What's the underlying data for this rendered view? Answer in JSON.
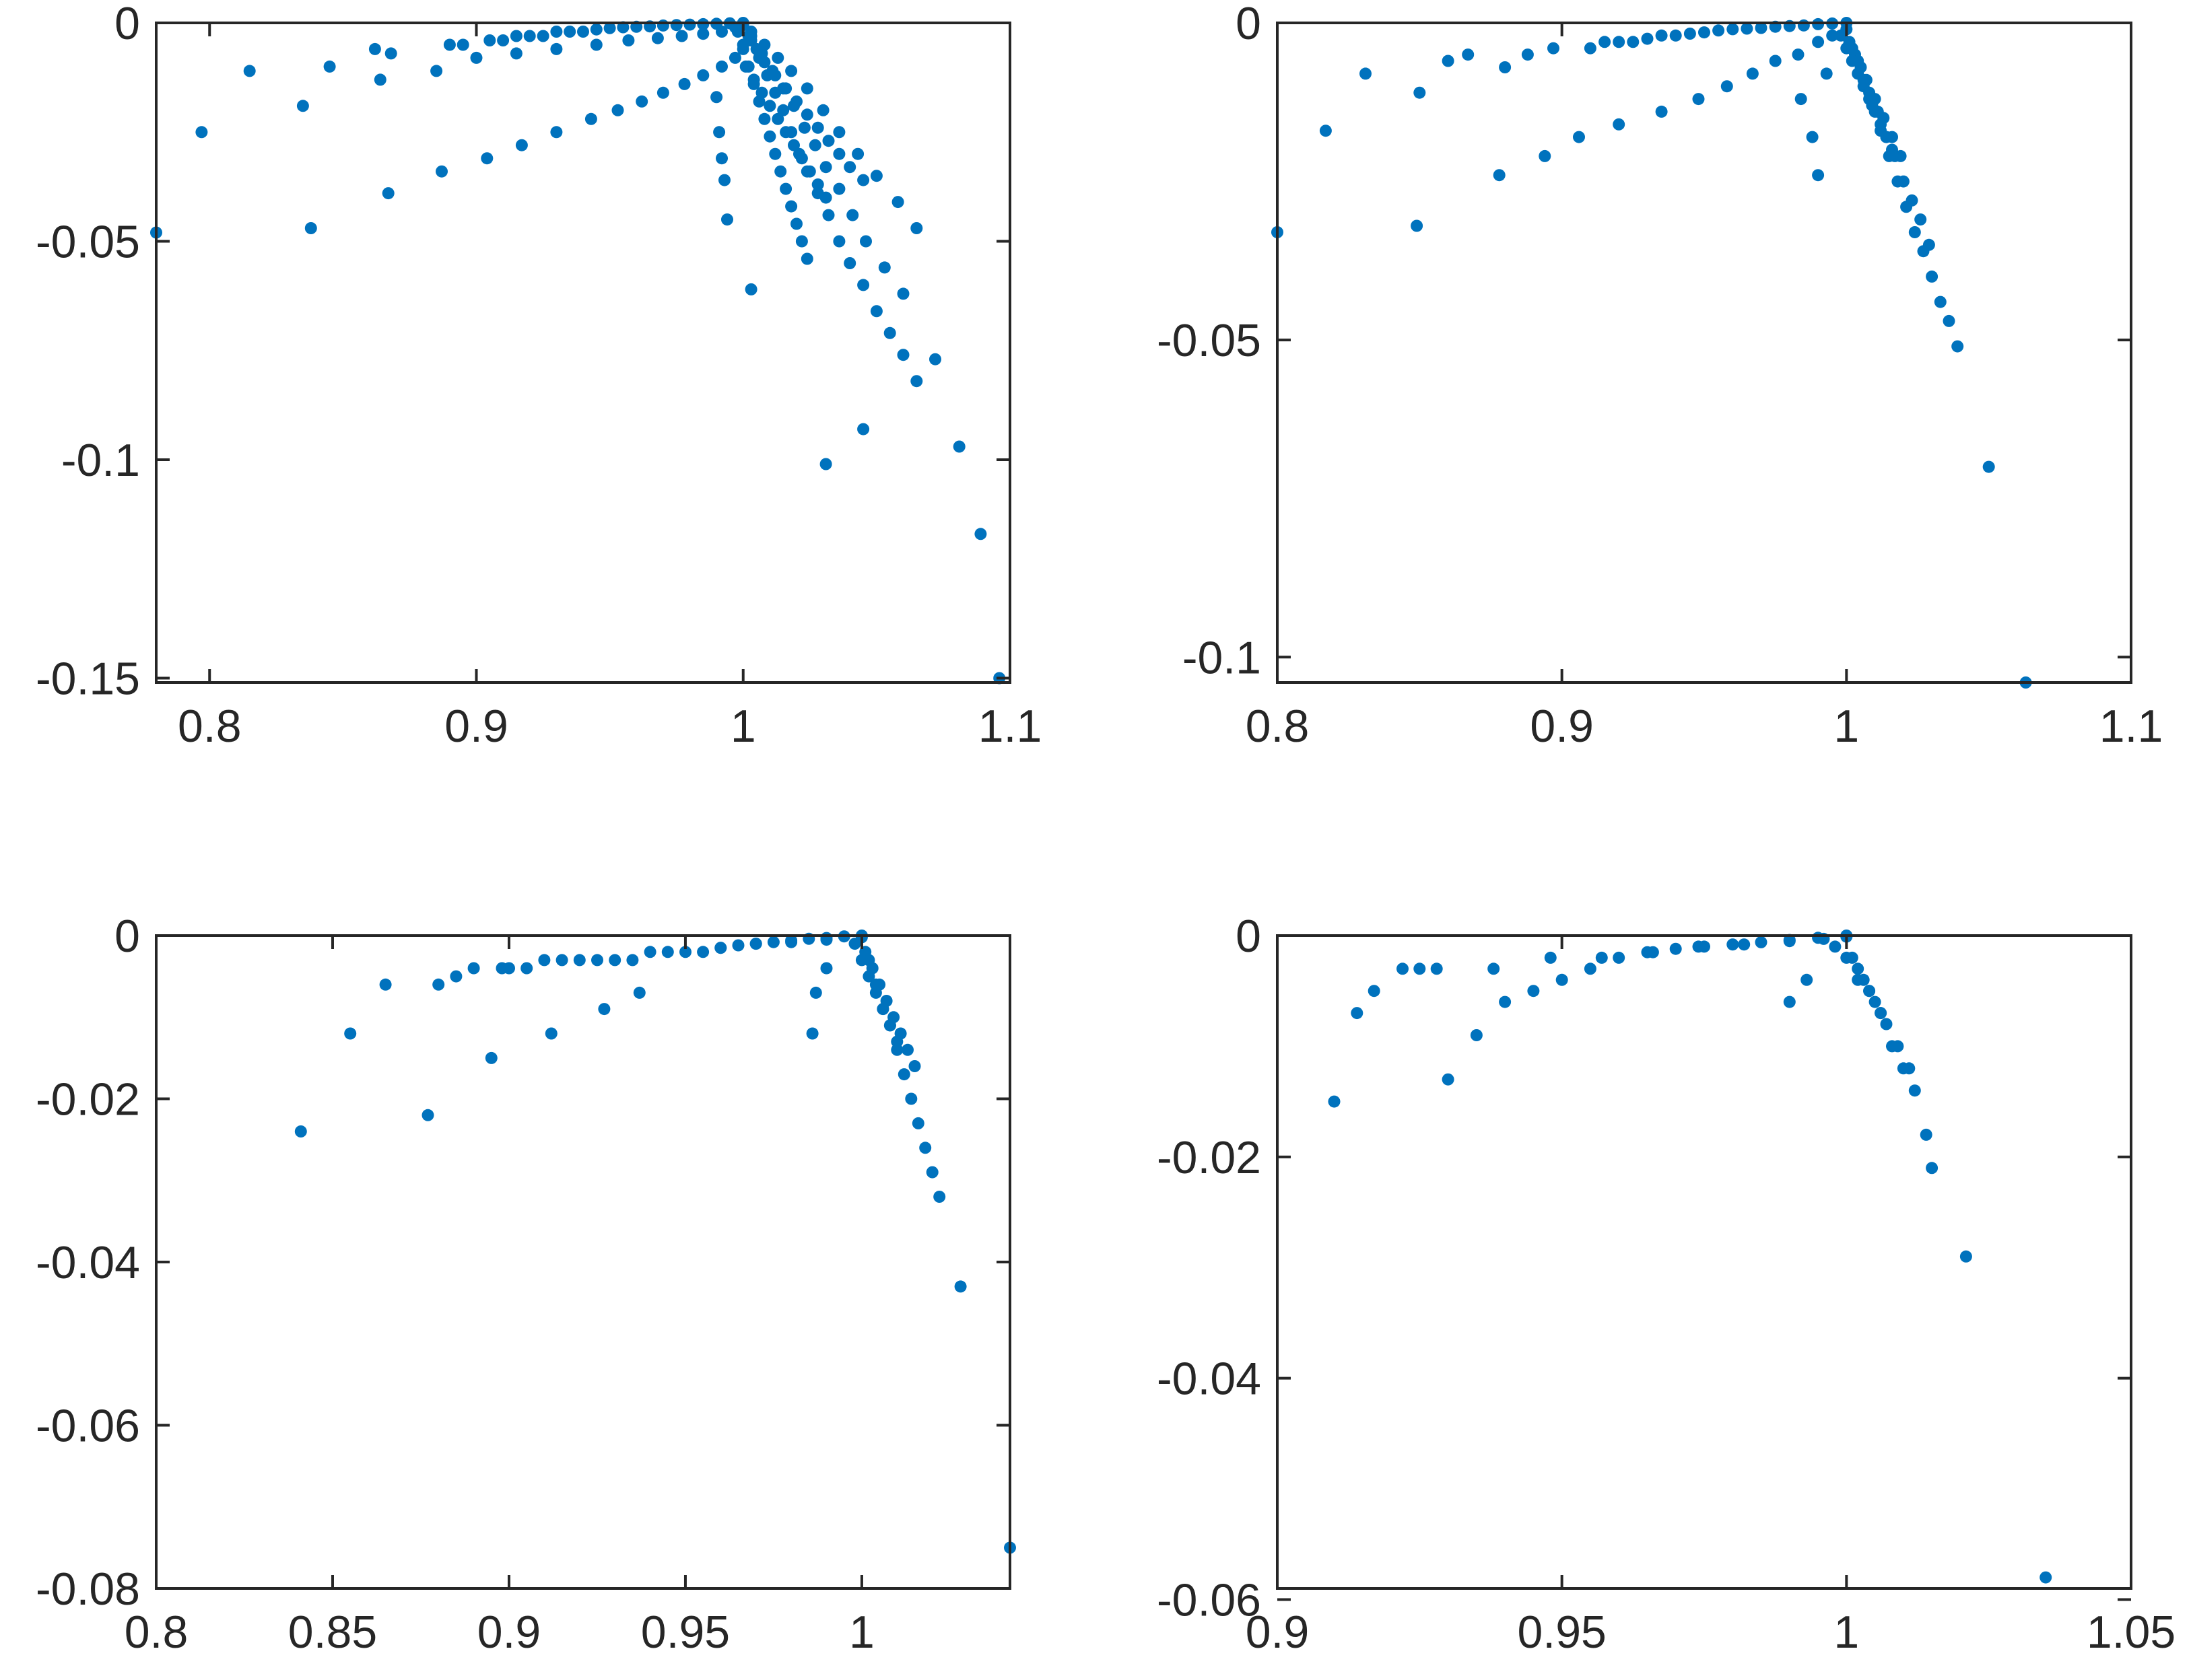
{
  "figure": {
    "marker_color": "#0072BD",
    "axis_color": "#262626",
    "background": "#ffffff"
  },
  "chart_data": [
    {
      "type": "scatter",
      "panel": "top-left",
      "title": "",
      "xlabel": "",
      "ylabel": "",
      "xlim": [
        0.78,
        1.1
      ],
      "ylim": [
        -0.151,
        0
      ],
      "xticks": [
        0.8,
        0.9,
        1,
        1.1
      ],
      "xtick_labels": [
        "0.8",
        "0.9",
        "1",
        "1.1"
      ],
      "yticks": [
        0,
        -0.05,
        -0.1,
        -0.15
      ],
      "ytick_labels": [
        "0",
        "-0.05",
        "-0.1",
        "-0.15"
      ],
      "series": [
        {
          "name": "points",
          "x": [
            0.78,
            0.797,
            0.815,
            0.835,
            0.838,
            0.845,
            0.862,
            0.864,
            0.867,
            0.868,
            0.885,
            0.887,
            0.89,
            0.895,
            0.904,
            0.905,
            0.91,
            0.915,
            0.92,
            0.925,
            0.93,
            0.935,
            0.94,
            0.945,
            0.95,
            0.955,
            0.96,
            0.965,
            0.97,
            0.975,
            0.98,
            0.985,
            0.99,
            0.995,
            1.0,
            0.917,
            0.93,
            0.943,
            0.953,
            0.962,
            0.97,
            0.978,
            0.985,
            0.992,
            0.997,
            1.0,
            0.9,
            0.915,
            0.93,
            0.945,
            0.957,
            0.968,
            0.977,
            0.985,
            0.992,
            0.997,
            1.0,
            1.003,
            1.006,
            1.009,
            1.012,
            1.015,
            1.018,
            1.021,
            1.024,
            1.028,
            1.032,
            1.036,
            1.04,
            1.045,
            1.05,
            1.055,
            1.06,
            1.065,
            1.072,
            1.081,
            1.089,
            1.096,
            1.003,
            1.007,
            1.011,
            1.015,
            1.019,
            1.023,
            1.027,
            1.031,
            1.036,
            1.041,
            1.046,
            1.053,
            1.06,
            1.003,
            1.008,
            1.013,
            1.018,
            1.024,
            1.03,
            1.036,
            1.043,
            1.05,
            1.058,
            1.065,
            1.002,
            1.005,
            1.008,
            1.012,
            1.016,
            1.02,
            1.024,
            1.028,
            1.032,
            1.036,
            1.04,
            1.045,
            0.99,
            0.991,
            0.992,
            0.993,
            0.994,
            1.003,
            1.031,
            1.045,
            1.001,
            1.004,
            1.007,
            1.01,
            1.013,
            1.016,
            1.019,
            1.022,
            1.025,
            1.028,
            1.031,
            0.998,
            1.0,
            1.002,
            1.004,
            1.006,
            1.008,
            1.01,
            1.012,
            1.014,
            1.016,
            1.018,
            1.02,
            1.022,
            1.024
          ],
          "y": [
            -0.048,
            -0.025,
            -0.011,
            -0.019,
            -0.047,
            -0.01,
            -0.006,
            -0.013,
            -0.039,
            -0.007,
            -0.011,
            -0.034,
            -0.005,
            -0.005,
            -0.031,
            -0.004,
            -0.004,
            -0.003,
            -0.003,
            -0.003,
            -0.002,
            -0.002,
            -0.002,
            -0.0015,
            -0.0012,
            -0.001,
            -0.0009,
            -0.0008,
            -0.0006,
            -0.0005,
            -0.0004,
            -0.0003,
            -0.0002,
            -0.0001,
            0,
            -0.028,
            -0.025,
            -0.022,
            -0.02,
            -0.018,
            -0.016,
            -0.014,
            -0.012,
            -0.01,
            -0.008,
            -0.005,
            -0.008,
            -0.007,
            -0.006,
            -0.005,
            -0.004,
            -0.0035,
            -0.003,
            -0.0025,
            -0.002,
            -0.001,
            -0.0005,
            -0.004,
            -0.008,
            -0.012,
            -0.016,
            -0.02,
            -0.025,
            -0.03,
            -0.034,
            -0.039,
            -0.044,
            -0.05,
            -0.055,
            -0.06,
            -0.066,
            -0.071,
            -0.076,
            -0.082,
            -0.077,
            -0.097,
            -0.117,
            -0.15,
            -0.003,
            -0.007,
            -0.011,
            -0.015,
            -0.019,
            -0.024,
            -0.028,
            -0.033,
            -0.038,
            -0.044,
            -0.05,
            -0.056,
            -0.062,
            -0.002,
            -0.005,
            -0.008,
            -0.011,
            -0.015,
            -0.02,
            -0.025,
            -0.03,
            -0.035,
            -0.041,
            -0.047,
            -0.003,
            -0.006,
            -0.009,
            -0.012,
            -0.015,
            -0.018,
            -0.021,
            -0.024,
            -0.027,
            -0.03,
            -0.033,
            -0.036,
            -0.017,
            -0.025,
            -0.031,
            -0.036,
            -0.045,
            -0.061,
            -0.101,
            -0.093,
            -0.01,
            -0.013,
            -0.016,
            -0.019,
            -0.022,
            -0.025,
            -0.028,
            -0.031,
            -0.034,
            -0.037,
            -0.04,
            -0.002,
            -0.006,
            -0.01,
            -0.014,
            -0.018,
            -0.022,
            -0.026,
            -0.03,
            -0.034,
            -0.038,
            -0.042,
            -0.046,
            -0.05,
            -0.054
          ]
        }
      ]
    },
    {
      "type": "scatter",
      "panel": "top-right",
      "title": "",
      "xlabel": "",
      "ylabel": "",
      "xlim": [
        0.8,
        1.1
      ],
      "ylim": [
        -0.104,
        0
      ],
      "xticks": [
        0.8,
        0.9,
        1,
        1.1
      ],
      "xtick_labels": [
        "0.8",
        "0.9",
        "1",
        "1.1"
      ],
      "yticks": [
        0,
        -0.05,
        -0.1
      ],
      "ytick_labels": [
        "0",
        "-0.05",
        "-0.1"
      ],
      "series": [
        {
          "name": "points",
          "x": [
            0.8,
            0.817,
            0.831,
            0.849,
            0.85,
            0.86,
            0.867,
            0.878,
            0.88,
            0.888,
            0.894,
            0.897,
            0.906,
            0.91,
            0.915,
            0.92,
            0.925,
            0.93,
            0.935,
            0.94,
            0.945,
            0.95,
            0.955,
            0.96,
            0.965,
            0.97,
            0.975,
            0.98,
            0.985,
            0.99,
            0.995,
            1.0,
            0.92,
            0.935,
            0.948,
            0.958,
            0.967,
            0.975,
            0.983,
            0.99,
            0.995,
            1.0,
            0.984,
            0.988,
            0.99,
            0.993,
            1.003,
            1.006,
            1.009,
            1.012,
            1.015,
            1.018,
            1.021,
            1.024,
            1.027,
            1.03,
            1.033,
            1.036,
            1.039,
            1.05,
            1.063,
            1.002,
            1.005,
            1.008,
            1.011,
            1.014,
            1.017,
            1.02,
            1.023,
            1.026,
            1.029,
            1.001,
            1.004,
            1.007,
            1.01,
            1.013,
            1.016,
            1.019,
            0.998,
            1.0,
            1.002,
            1.004,
            1.006,
            1.008,
            1.01,
            1.012,
            1.014,
            1.016
          ],
          "y": [
            -0.033,
            -0.017,
            -0.008,
            -0.032,
            -0.011,
            -0.006,
            -0.005,
            -0.024,
            -0.007,
            -0.005,
            -0.021,
            -0.004,
            -0.018,
            -0.004,
            -0.003,
            -0.003,
            -0.003,
            -0.0025,
            -0.002,
            -0.002,
            -0.0017,
            -0.0015,
            -0.0012,
            -0.001,
            -0.0009,
            -0.0008,
            -0.0006,
            -0.0005,
            -0.0004,
            -0.0002,
            -0.0001,
            0,
            -0.016,
            -0.014,
            -0.012,
            -0.01,
            -0.008,
            -0.006,
            -0.005,
            -0.003,
            -0.002,
            -0.001,
            -0.012,
            -0.018,
            -0.024,
            -0.008,
            -0.005,
            -0.009,
            -0.013,
            -0.017,
            -0.021,
            -0.025,
            -0.029,
            -0.033,
            -0.036,
            -0.04,
            -0.044,
            -0.047,
            -0.051,
            -0.07,
            -0.104,
            -0.004,
            -0.007,
            -0.011,
            -0.014,
            -0.018,
            -0.021,
            -0.025,
            -0.028,
            -0.031,
            -0.035,
            -0.003,
            -0.006,
            -0.009,
            -0.012,
            -0.015,
            -0.018,
            -0.021,
            -0.002,
            -0.004,
            -0.006,
            -0.008,
            -0.01,
            -0.012,
            -0.014,
            -0.016,
            -0.018,
            -0.02
          ]
        }
      ]
    },
    {
      "type": "scatter",
      "panel": "bottom-left",
      "title": "",
      "xlabel": "",
      "ylabel": "",
      "xlim": [
        0.8,
        1.042
      ],
      "ylim": [
        -0.08,
        0
      ],
      "xticks": [
        0.8,
        0.85,
        0.9,
        0.95,
        1
      ],
      "xtick_labels": [
        "0.8",
        "0.85",
        "0.9",
        "0.95",
        "1"
      ],
      "yticks": [
        0,
        -0.02,
        -0.04,
        -0.06,
        -0.08
      ],
      "ytick_labels": [
        "0",
        "-0.02",
        "-0.04",
        "-0.06",
        "-0.08"
      ],
      "series": [
        {
          "name": "points",
          "x": [
            0.841,
            0.855,
            0.865,
            0.877,
            0.88,
            0.885,
            0.895,
            0.898,
            0.905,
            0.912,
            0.915,
            0.925,
            0.927,
            0.935,
            0.937,
            0.945,
            0.955,
            0.96,
            0.965,
            0.97,
            0.975,
            0.98,
            0.985,
            0.99,
            0.995,
            1.0,
            0.89,
            0.9,
            0.91,
            0.92,
            0.93,
            0.94,
            0.95,
            0.96,
            0.97,
            0.98,
            0.99,
            1.0,
            0.986,
            0.987,
            0.99,
            1.002,
            1.004,
            1.006,
            1.008,
            1.01,
            1.012,
            1.014,
            1.016,
            1.018,
            1.02,
            1.022,
            1.028,
            1.042,
            1.001,
            1.003,
            1.005,
            1.007,
            1.009,
            1.011,
            1.013,
            1.015,
            0.998,
            1.0,
            1.002,
            1.004,
            1.006,
            1.008,
            1.01
          ],
          "y": [
            -0.024,
            -0.012,
            -0.006,
            -0.022,
            -0.006,
            -0.005,
            -0.015,
            -0.004,
            -0.004,
            -0.012,
            -0.003,
            -0.003,
            -0.009,
            -0.003,
            -0.007,
            -0.002,
            -0.002,
            -0.0015,
            -0.0012,
            -0.001,
            -0.0008,
            -0.0006,
            -0.0004,
            -0.0003,
            -0.0001,
            0,
            -0.004,
            -0.004,
            -0.003,
            -0.003,
            -0.003,
            -0.002,
            -0.002,
            -0.0015,
            -0.001,
            -0.0008,
            -0.0005,
            -0.0002,
            -0.012,
            -0.007,
            -0.004,
            -0.003,
            -0.006,
            -0.009,
            -0.011,
            -0.014,
            -0.017,
            -0.02,
            -0.023,
            -0.026,
            -0.029,
            -0.032,
            -0.043,
            -0.075,
            -0.002,
            -0.004,
            -0.006,
            -0.008,
            -0.01,
            -0.012,
            -0.014,
            -0.016,
            -0.001,
            -0.003,
            -0.005,
            -0.007,
            -0.009,
            -0.011,
            -0.013
          ]
        }
      ]
    },
    {
      "type": "scatter",
      "panel": "bottom-right",
      "title": "",
      "xlabel": "",
      "ylabel": "",
      "xlim": [
        0.9,
        1.05
      ],
      "ylim": [
        -0.059,
        0
      ],
      "xticks": [
        0.9,
        0.95,
        1,
        1.05
      ],
      "xtick_labels": [
        "0.9",
        "0.95",
        "1",
        "1.05"
      ],
      "yticks": [
        0,
        -0.02,
        -0.04,
        -0.06
      ],
      "ytick_labels": [
        "0",
        "-0.02",
        "-0.04",
        "-0.06"
      ],
      "series": [
        {
          "name": "points",
          "x": [
            0.91,
            0.914,
            0.917,
            0.922,
            0.925,
            0.93,
            0.935,
            0.94,
            0.945,
            0.95,
            0.955,
            0.96,
            0.965,
            0.97,
            0.975,
            0.98,
            0.985,
            0.99,
            0.995,
            1.0,
            0.928,
            0.938,
            0.948,
            0.957,
            0.966,
            0.974,
            0.982,
            0.99,
            0.996,
            1.0,
            0.99,
            0.993,
            1.002,
            1.004,
            1.006,
            1.008,
            1.01,
            1.012,
            1.014,
            1.015,
            1.021,
            1.035,
            1.001,
            1.003,
            1.005,
            1.007,
            1.009,
            1.011,
            0.998,
            1.0,
            1.002,
            1.004,
            1.006
          ],
          "y": [
            -0.015,
            -0.007,
            -0.005,
            -0.003,
            -0.003,
            -0.013,
            -0.009,
            -0.006,
            -0.005,
            -0.004,
            -0.003,
            -0.002,
            -0.0015,
            -0.0012,
            -0.001,
            -0.0008,
            -0.0006,
            -0.0004,
            -0.0002,
            0,
            -0.003,
            -0.003,
            -0.002,
            -0.002,
            -0.0015,
            -0.001,
            -0.0008,
            -0.0005,
            -0.0003,
            -0.0001,
            -0.006,
            -0.004,
            -0.003,
            -0.005,
            -0.007,
            -0.01,
            -0.012,
            -0.014,
            -0.018,
            -0.021,
            -0.029,
            -0.058,
            -0.002,
            -0.004,
            -0.006,
            -0.008,
            -0.01,
            -0.012,
            -0.001,
            -0.002,
            -0.004,
            -0.005,
            -0.007
          ]
        }
      ]
    }
  ]
}
